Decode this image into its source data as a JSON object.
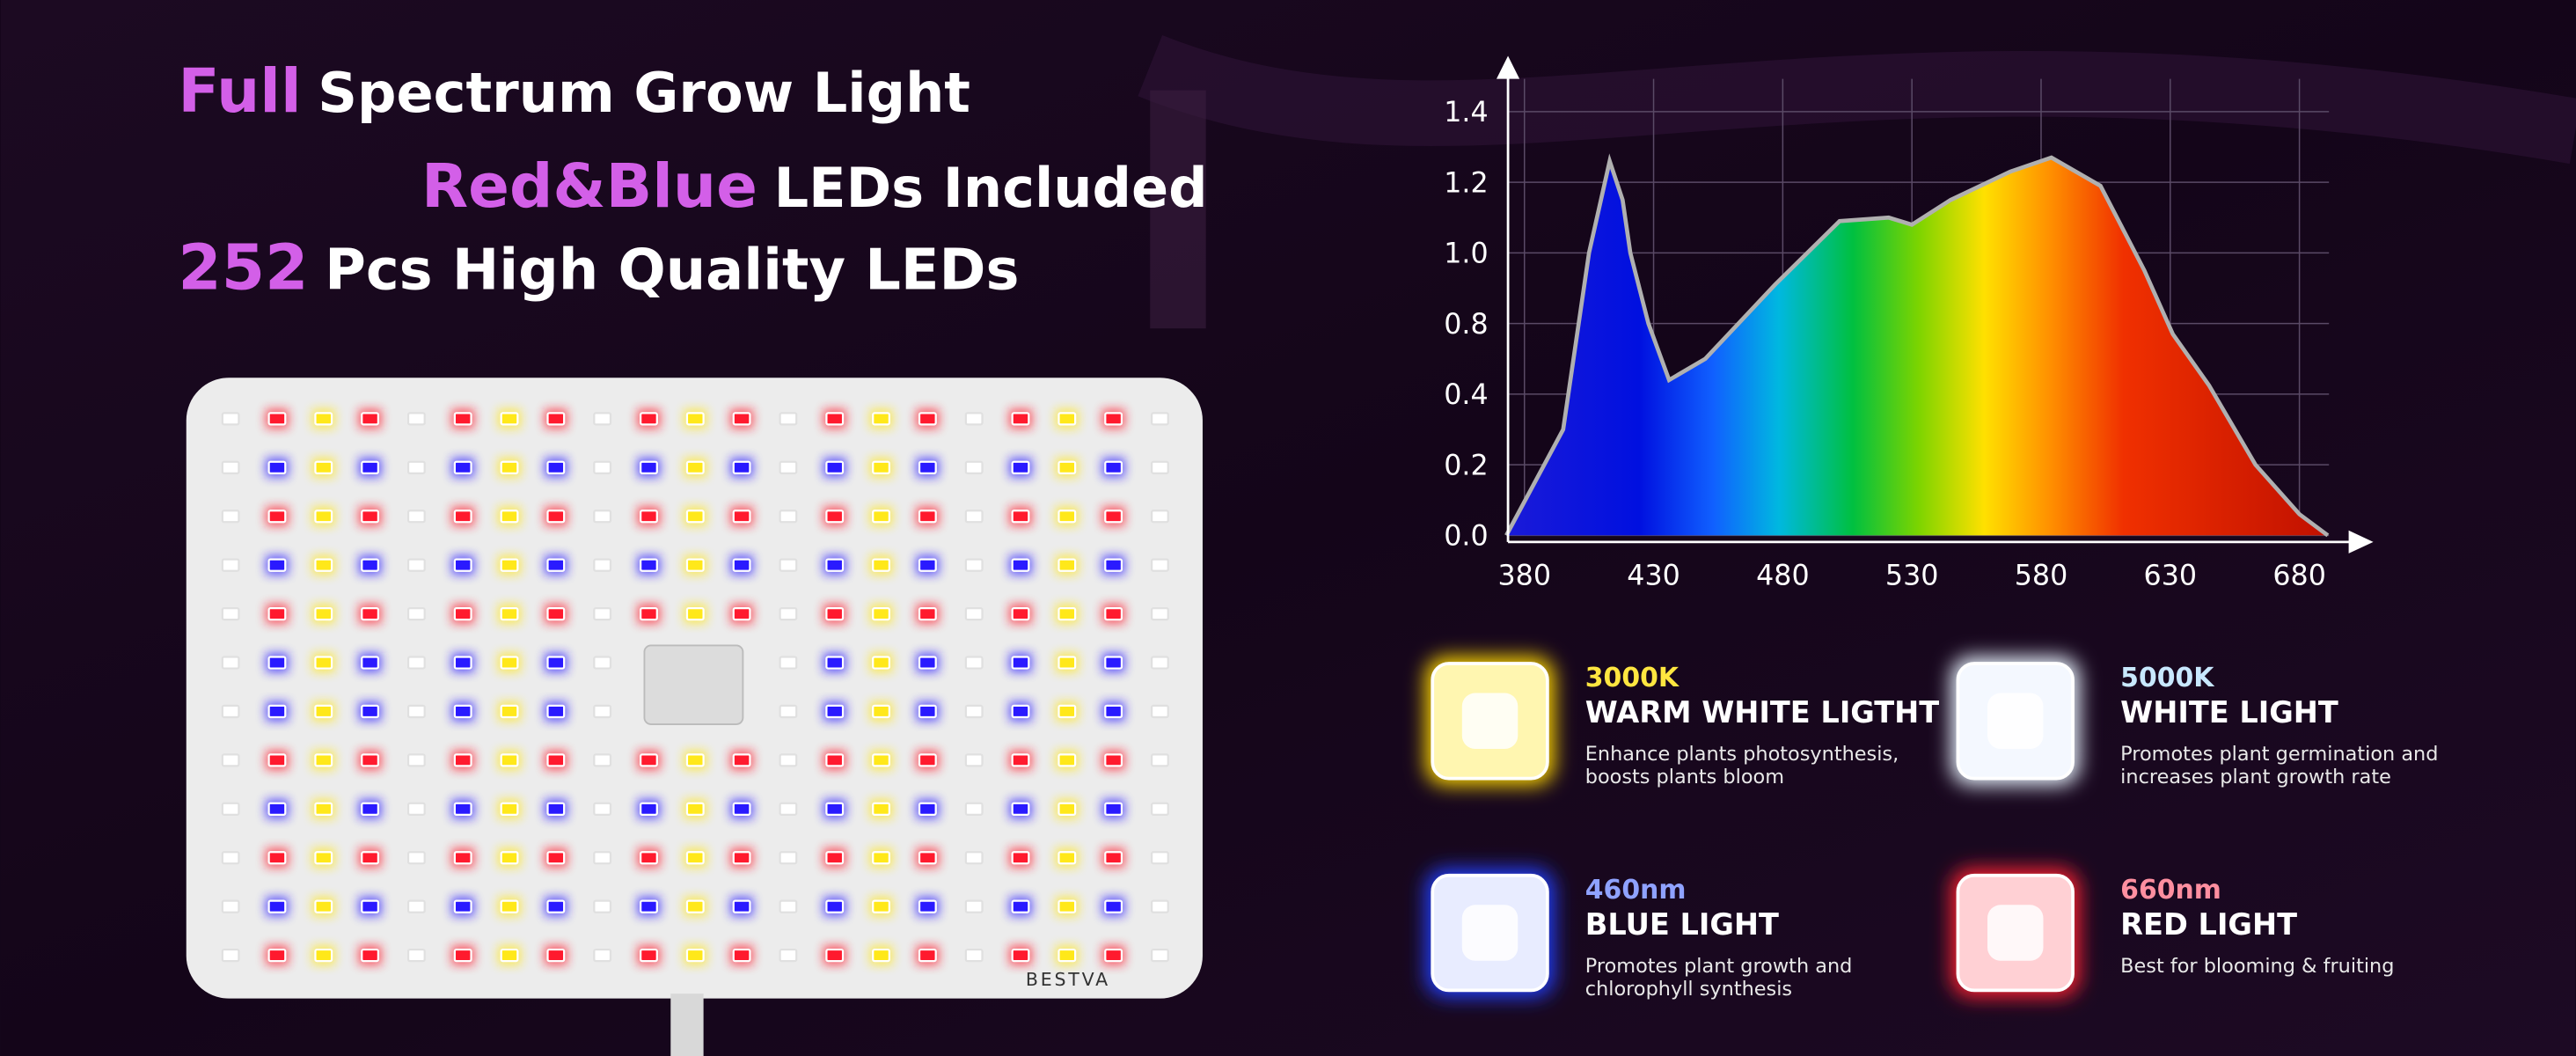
{
  "headline": [
    {
      "highlight": "Full",
      "text": "Spectrum Grow Light"
    },
    {
      "highlight": "Red&Blue",
      "text": "LEDs Included"
    },
    {
      "highlight": "252",
      "text": "Pcs High Quality LEDs"
    }
  ],
  "brand": "BESTVA",
  "spectrum": {
    "xticks": [
      380,
      430,
      480,
      530,
      580,
      630,
      680
    ],
    "yticks": [
      {
        "value": 0,
        "label": "0.0"
      },
      {
        "value": 0.2,
        "label": "0.2"
      },
      {
        "value": 0.4,
        "label": "0.4"
      },
      {
        "value": 0.8,
        "label": "0.8"
      },
      {
        "value": 1.0,
        "label": "1.0"
      },
      {
        "value": 1.2,
        "label": "1.2"
      },
      {
        "value": 1.4,
        "label": "1.4"
      }
    ],
    "curve": {
      "nm": [
        373,
        395,
        405,
        413,
        418,
        421,
        428,
        436,
        450,
        477,
        502,
        521,
        530,
        545,
        568,
        584,
        603,
        620,
        631,
        645,
        663,
        680,
        691
      ],
      "values": [
        0,
        0.3,
        1.0,
        1.26,
        1.15,
        1.0,
        0.8,
        0.48,
        0.6,
        0.91,
        1.09,
        1.1,
        1.08,
        1.15,
        1.23,
        1.27,
        1.19,
        0.95,
        0.74,
        0.45,
        0.2,
        0.06,
        0
      ]
    }
  },
  "cards": [
    {
      "tag": "3000K",
      "title": "WARM WHITE LIGTHT",
      "lines": [
        "Enhance plants photosynthesis,",
        "boosts plants bloom"
      ]
    },
    {
      "tag": "5000K",
      "title": "WHITE LIGHT",
      "lines": [
        "Promotes plant germination and",
        "increases plant growth rate"
      ]
    },
    {
      "tag": "460nm",
      "title": "BLUE LIGHT",
      "lines": [
        "Promotes plant growth and",
        "chlorophyll synthesis"
      ]
    },
    {
      "tag": "660nm",
      "title": "RED LIGHT",
      "lines": [
        "Best for blooming & fruiting"
      ]
    }
  ]
}
